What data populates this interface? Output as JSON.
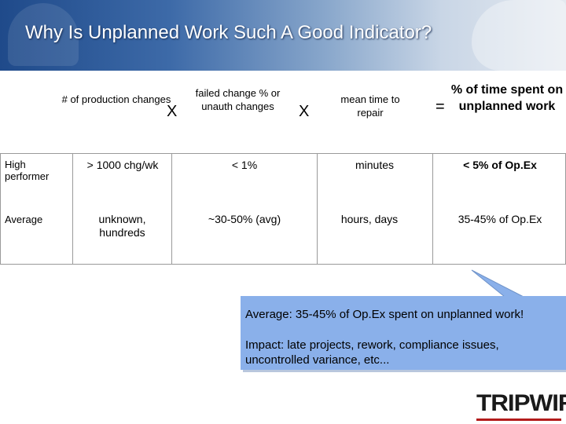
{
  "title": "Why Is Unplanned Work Such A Good Indicator?",
  "headers": {
    "production_changes": "# of production changes",
    "failed_change": "failed change % or unauth changes",
    "mttr": "mean time to repair",
    "unplanned": "% of time spent on unplanned work"
  },
  "operators": {
    "times1": "X",
    "times2": "X",
    "equals": "="
  },
  "rows": [
    {
      "label": "High performer",
      "production_changes": "> 1000 chg/wk",
      "failed_change": "< 1%",
      "mttr": "minutes",
      "unplanned": "< 5% of Op.Ex"
    },
    {
      "label": "Average",
      "production_changes": "unknown, hundreds",
      "failed_change": "~30-50% (avg)",
      "mttr": "hours, days",
      "unplanned": "35-45% of Op.Ex"
    }
  ],
  "callout": {
    "line1": "Average: 35-45% of Op.Ex spent on unplanned work!",
    "line2": "Impact: late projects, rework, compliance issues, uncontrolled variance, etc..."
  },
  "logo": "TRIPWIRE",
  "colors": {
    "callout": "#8ab0ea",
    "title_bar": "#3d6aa8",
    "logo_accent": "#b31b1b"
  }
}
